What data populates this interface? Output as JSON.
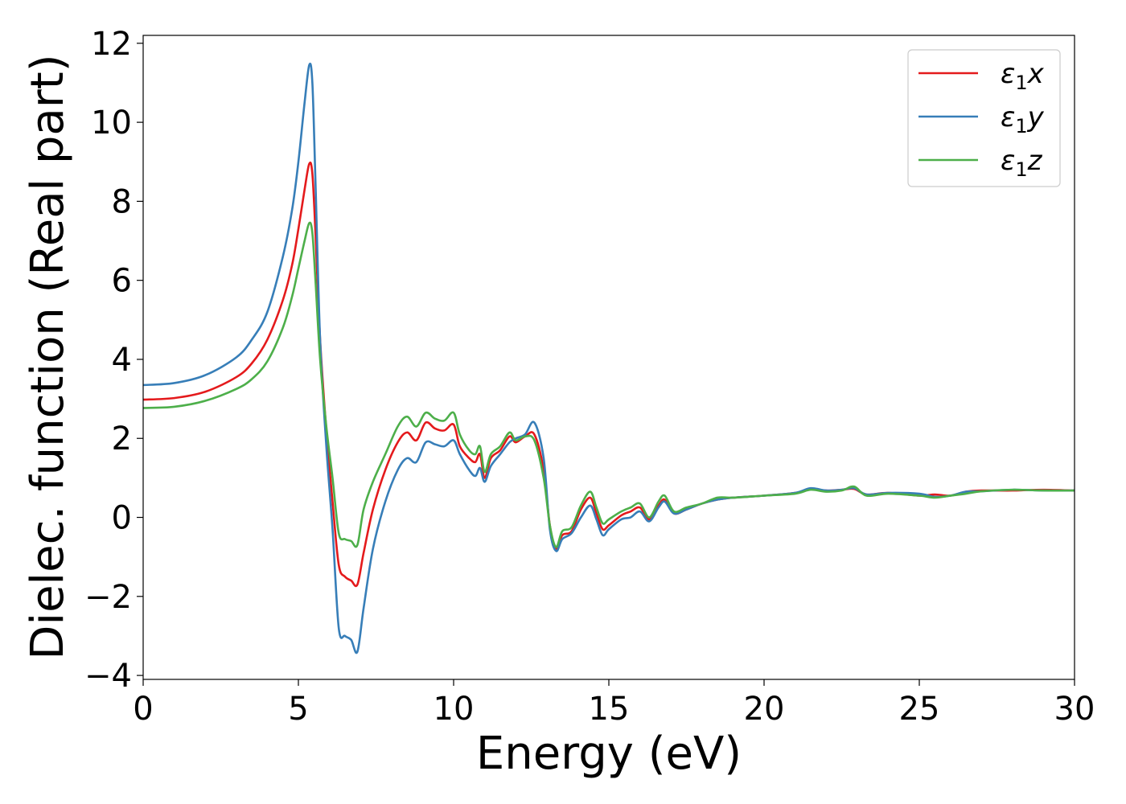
{
  "chart_data": {
    "type": "line",
    "xlabel": "Energy (eV)",
    "ylabel": "Dielec. function (Real part)",
    "xlim": [
      0,
      30
    ],
    "ylim": [
      -4.1,
      12.2
    ],
    "xticks": [
      0,
      5,
      10,
      15,
      20,
      25,
      30
    ],
    "xtick_labels": [
      "0",
      "5",
      "10",
      "15",
      "20",
      "25",
      "30"
    ],
    "yticks": [
      -4,
      -2,
      0,
      2,
      4,
      6,
      8,
      10,
      12
    ],
    "ytick_labels": [
      "−4",
      "−2",
      "0",
      "2",
      "4",
      "6",
      "8",
      "10",
      "12"
    ],
    "grid": false,
    "legend_position": "top-right",
    "series": [
      {
        "name": "ε₁x",
        "legend_base": "ε",
        "legend_sub": "1",
        "legend_var": "x",
        "color": "#e41a1c",
        "x": [
          0,
          1,
          2,
          3,
          3.5,
          4,
          4.5,
          4.8,
          5.0,
          5.2,
          5.35,
          5.45,
          5.55,
          5.7,
          5.9,
          6.1,
          6.3,
          6.5,
          6.7,
          6.9,
          7.1,
          7.4,
          7.8,
          8.2,
          8.5,
          8.8,
          9.1,
          9.4,
          9.7,
          10.0,
          10.2,
          10.5,
          10.7,
          10.85,
          11.0,
          11.2,
          11.5,
          11.8,
          12.0,
          12.3,
          12.6,
          12.9,
          13.1,
          13.3,
          13.5,
          13.8,
          14.1,
          14.4,
          14.6,
          14.8,
          15.0,
          15.4,
          15.7,
          16.0,
          16.3,
          16.6,
          16.8,
          17.1,
          17.5,
          18.0,
          18.5,
          19.0,
          20.0,
          21.0,
          21.5,
          22.0,
          22.5,
          22.9,
          23.3,
          24.0,
          25.0,
          25.5,
          26.0,
          26.5,
          27.0,
          28.0,
          29.0,
          30.0
        ],
        "y": [
          2.98,
          3.02,
          3.18,
          3.55,
          3.9,
          4.5,
          5.5,
          6.4,
          7.3,
          8.3,
          8.95,
          8.7,
          7.2,
          4.5,
          2.2,
          0.4,
          -1.2,
          -1.5,
          -1.6,
          -1.7,
          -0.9,
          0.2,
          1.2,
          1.9,
          2.15,
          1.95,
          2.4,
          2.25,
          2.2,
          2.35,
          1.8,
          1.5,
          1.4,
          1.6,
          1.0,
          1.5,
          1.7,
          2.05,
          1.9,
          2.05,
          2.1,
          1.2,
          -0.2,
          -0.8,
          -0.45,
          -0.35,
          0.2,
          0.5,
          0.1,
          -0.3,
          -0.2,
          0.05,
          0.15,
          0.25,
          -0.05,
          0.3,
          0.45,
          0.1,
          0.2,
          0.35,
          0.45,
          0.5,
          0.55,
          0.62,
          0.72,
          0.68,
          0.7,
          0.72,
          0.58,
          0.62,
          0.55,
          0.58,
          0.55,
          0.65,
          0.68,
          0.68,
          0.7,
          0.68
        ]
      },
      {
        "name": "ε₁y",
        "legend_base": "ε",
        "legend_sub": "1",
        "legend_var": "y",
        "color": "#377eb8",
        "x": [
          0,
          1,
          2,
          3,
          3.5,
          4,
          4.5,
          4.8,
          5.0,
          5.2,
          5.35,
          5.45,
          5.55,
          5.7,
          5.9,
          6.1,
          6.3,
          6.5,
          6.7,
          6.9,
          7.1,
          7.4,
          7.8,
          8.2,
          8.5,
          8.8,
          9.1,
          9.4,
          9.7,
          10.0,
          10.2,
          10.5,
          10.7,
          10.85,
          11.0,
          11.2,
          11.5,
          11.8,
          12.0,
          12.3,
          12.6,
          12.9,
          13.1,
          13.3,
          13.5,
          13.8,
          14.1,
          14.4,
          14.6,
          14.8,
          15.0,
          15.4,
          15.7,
          16.0,
          16.3,
          16.6,
          16.8,
          17.1,
          17.5,
          18.0,
          18.5,
          19.0,
          20.0,
          21.0,
          21.5,
          22.0,
          22.5,
          22.9,
          23.3,
          24.0,
          25.0,
          25.5,
          26.0,
          26.5,
          27.0,
          28.0,
          29.0,
          30.0
        ],
        "y": [
          3.35,
          3.4,
          3.6,
          4.05,
          4.5,
          5.2,
          6.6,
          7.8,
          9.0,
          10.5,
          11.45,
          11.0,
          8.5,
          4.5,
          1.8,
          -0.3,
          -2.8,
          -3.0,
          -3.1,
          -3.4,
          -2.3,
          -0.8,
          0.4,
          1.2,
          1.5,
          1.4,
          1.9,
          1.85,
          1.8,
          1.95,
          1.6,
          1.2,
          1.05,
          1.25,
          0.9,
          1.3,
          1.6,
          1.9,
          2.0,
          2.1,
          2.4,
          1.5,
          -0.3,
          -0.85,
          -0.55,
          -0.4,
          0.0,
          0.3,
          -0.05,
          -0.45,
          -0.3,
          -0.05,
          0.0,
          0.15,
          -0.1,
          0.25,
          0.4,
          0.1,
          0.2,
          0.35,
          0.45,
          0.5,
          0.55,
          0.62,
          0.74,
          0.68,
          0.7,
          0.74,
          0.58,
          0.62,
          0.6,
          0.52,
          0.55,
          0.65,
          0.66,
          0.7,
          0.68,
          0.68
        ]
      },
      {
        "name": "ε₁z",
        "legend_base": "ε",
        "legend_sub": "1",
        "legend_var": "z",
        "color": "#4daf4a",
        "x": [
          0,
          1,
          2,
          3,
          3.5,
          4,
          4.5,
          4.8,
          5.0,
          5.2,
          5.35,
          5.45,
          5.55,
          5.7,
          5.9,
          6.1,
          6.3,
          6.5,
          6.7,
          6.9,
          7.1,
          7.4,
          7.8,
          8.2,
          8.5,
          8.8,
          9.1,
          9.4,
          9.7,
          10.0,
          10.2,
          10.5,
          10.7,
          10.85,
          11.0,
          11.2,
          11.5,
          11.8,
          12.0,
          12.3,
          12.6,
          12.9,
          13.1,
          13.3,
          13.5,
          13.8,
          14.1,
          14.4,
          14.6,
          14.8,
          15.0,
          15.4,
          15.7,
          16.0,
          16.3,
          16.6,
          16.8,
          17.1,
          17.5,
          18.0,
          18.5,
          19.0,
          20.0,
          21.0,
          21.5,
          22.0,
          22.5,
          22.9,
          23.3,
          24.0,
          25.0,
          25.5,
          26.0,
          26.5,
          27.0,
          28.0,
          29.0,
          30.0
        ],
        "y": [
          2.77,
          2.8,
          2.95,
          3.25,
          3.5,
          3.95,
          4.8,
          5.6,
          6.3,
          7.0,
          7.45,
          7.2,
          6.0,
          4.0,
          2.3,
          1.0,
          -0.4,
          -0.55,
          -0.6,
          -0.7,
          0.2,
          0.9,
          1.6,
          2.3,
          2.55,
          2.3,
          2.65,
          2.5,
          2.45,
          2.65,
          2.1,
          1.7,
          1.6,
          1.8,
          1.15,
          1.6,
          1.8,
          2.15,
          1.95,
          2.05,
          1.95,
          1.0,
          -0.2,
          -0.75,
          -0.35,
          -0.25,
          0.3,
          0.65,
          0.25,
          -0.15,
          -0.05,
          0.15,
          0.25,
          0.35,
          0.0,
          0.4,
          0.55,
          0.15,
          0.25,
          0.35,
          0.5,
          0.5,
          0.55,
          0.6,
          0.7,
          0.65,
          0.68,
          0.78,
          0.55,
          0.6,
          0.55,
          0.5,
          0.55,
          0.6,
          0.66,
          0.7,
          0.68,
          0.68
        ]
      }
    ]
  }
}
